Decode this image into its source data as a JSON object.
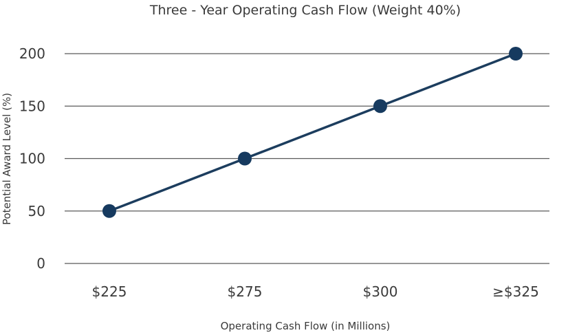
{
  "chart_data": {
    "type": "line",
    "title": "Three - Year Operating Cash Flow (Weight 40%)",
    "xlabel": "Operating Cash Flow (in Millions)",
    "ylabel": "Potential Award Level (%)",
    "categories": [
      "$225",
      "$275",
      "$300",
      "≥$325"
    ],
    "series": [
      {
        "values": [
          50,
          100,
          150,
          200
        ]
      }
    ],
    "ylim": [
      0,
      200
    ],
    "yticks": [
      0,
      50,
      100,
      150,
      200
    ],
    "grid": true,
    "colors": {
      "line": "#1c3d5e",
      "marker": "#163a5f",
      "grid": "#595959",
      "text": "#3a3a3a"
    }
  }
}
